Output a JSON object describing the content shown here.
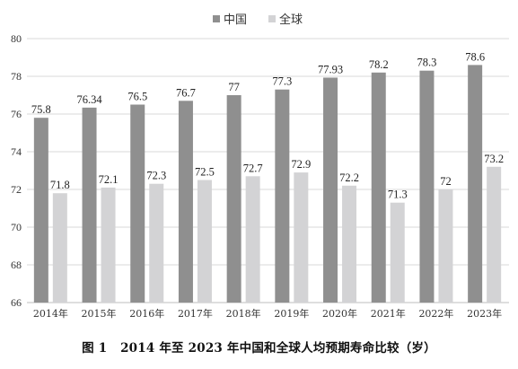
{
  "caption": {
    "figure_number": "图 1",
    "text": "2014 年至 2023 年中国和全球人均预期寿命比较（岁）"
  },
  "chart_data": {
    "type": "bar",
    "title": "",
    "xlabel": "",
    "ylabel": "",
    "categories": [
      "2014年",
      "2015年",
      "2016年",
      "2017年",
      "2018年",
      "2019年",
      "2020年",
      "2021年",
      "2022年",
      "2023年"
    ],
    "series": [
      {
        "name": "中国",
        "color": "#8f8f8f",
        "values": [
          75.8,
          76.34,
          76.5,
          76.7,
          77,
          77.3,
          77.93,
          78.2,
          78.3,
          78.6
        ],
        "labels": [
          "75.8",
          "76.34",
          "76.5",
          "76.7",
          "77",
          "77.3",
          "77.93",
          "78.2",
          "78.3",
          "78.6"
        ]
      },
      {
        "name": "全球",
        "color": "#d3d3d5",
        "values": [
          71.8,
          72.1,
          72.3,
          72.5,
          72.7,
          72.9,
          72.2,
          71.3,
          72,
          73.2
        ],
        "labels": [
          "71.8",
          "72.1",
          "72.3",
          "72.5",
          "72.7",
          "72.9",
          "72.2",
          "71.3",
          "72",
          "73.2"
        ]
      }
    ],
    "ylim": [
      66,
      80
    ],
    "yticks": [
      "66",
      "68",
      "70",
      "72",
      "74",
      "76",
      "78",
      "80"
    ],
    "grid": true,
    "legend_position": "top-center"
  }
}
